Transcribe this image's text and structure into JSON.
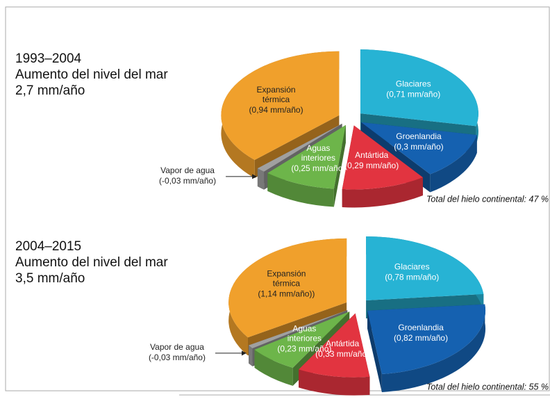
{
  "chart_data": [
    {
      "type": "pie",
      "title": "1993–2004",
      "subtitle": "Aumento del nivel del mar",
      "subtitle_2": "2,7 mm/año",
      "categories": [
        "Glaciares",
        "Groenlandia",
        "Antártida",
        "Aguas\ninteriores",
        "Vapor de agua",
        "Expansión\ntérmica"
      ],
      "values": [
        0.71,
        0.3,
        0.29,
        0.25,
        -0.03,
        0.94
      ],
      "value_labels": [
        "(0,71 mm/año)",
        "(0,3 mm/año)",
        "(0,29 mm/año)",
        "(0,25 mm/año)",
        "(-0,03 mm/año)",
        "(0,94 mm/año)"
      ],
      "colors": [
        "#27b3d4",
        "#1561b0",
        "#e23440",
        "#6db54a",
        "#a0a0a0",
        "#f0a02c"
      ],
      "annotation": "Total del hielo continental: 47 %"
    },
    {
      "type": "pie",
      "title": "2004–2015",
      "subtitle": "Aumento del nivel del mar",
      "subtitle_2": "3,5 mm/año",
      "categories": [
        "Glaciares",
        "Groenlandia",
        "Antártida",
        "Aguas\ninteriores",
        "Vapor de agua",
        "Expansión\ntérmica"
      ],
      "values": [
        0.78,
        0.82,
        0.33,
        0.23,
        -0.03,
        1.14
      ],
      "value_labels": [
        "(0,78 mm/año)",
        "(0,82 mm/año)",
        "(0,33 mm/año)",
        "(0,23 mm/año)",
        "(-0,03 mm/año)",
        "(1,14 mm/año))"
      ],
      "colors": [
        "#27b3d4",
        "#1561b0",
        "#e23440",
        "#6db54a",
        "#a0a0a0",
        "#f0a02c"
      ],
      "annotation": "Total del hielo continental: 55 %"
    }
  ]
}
